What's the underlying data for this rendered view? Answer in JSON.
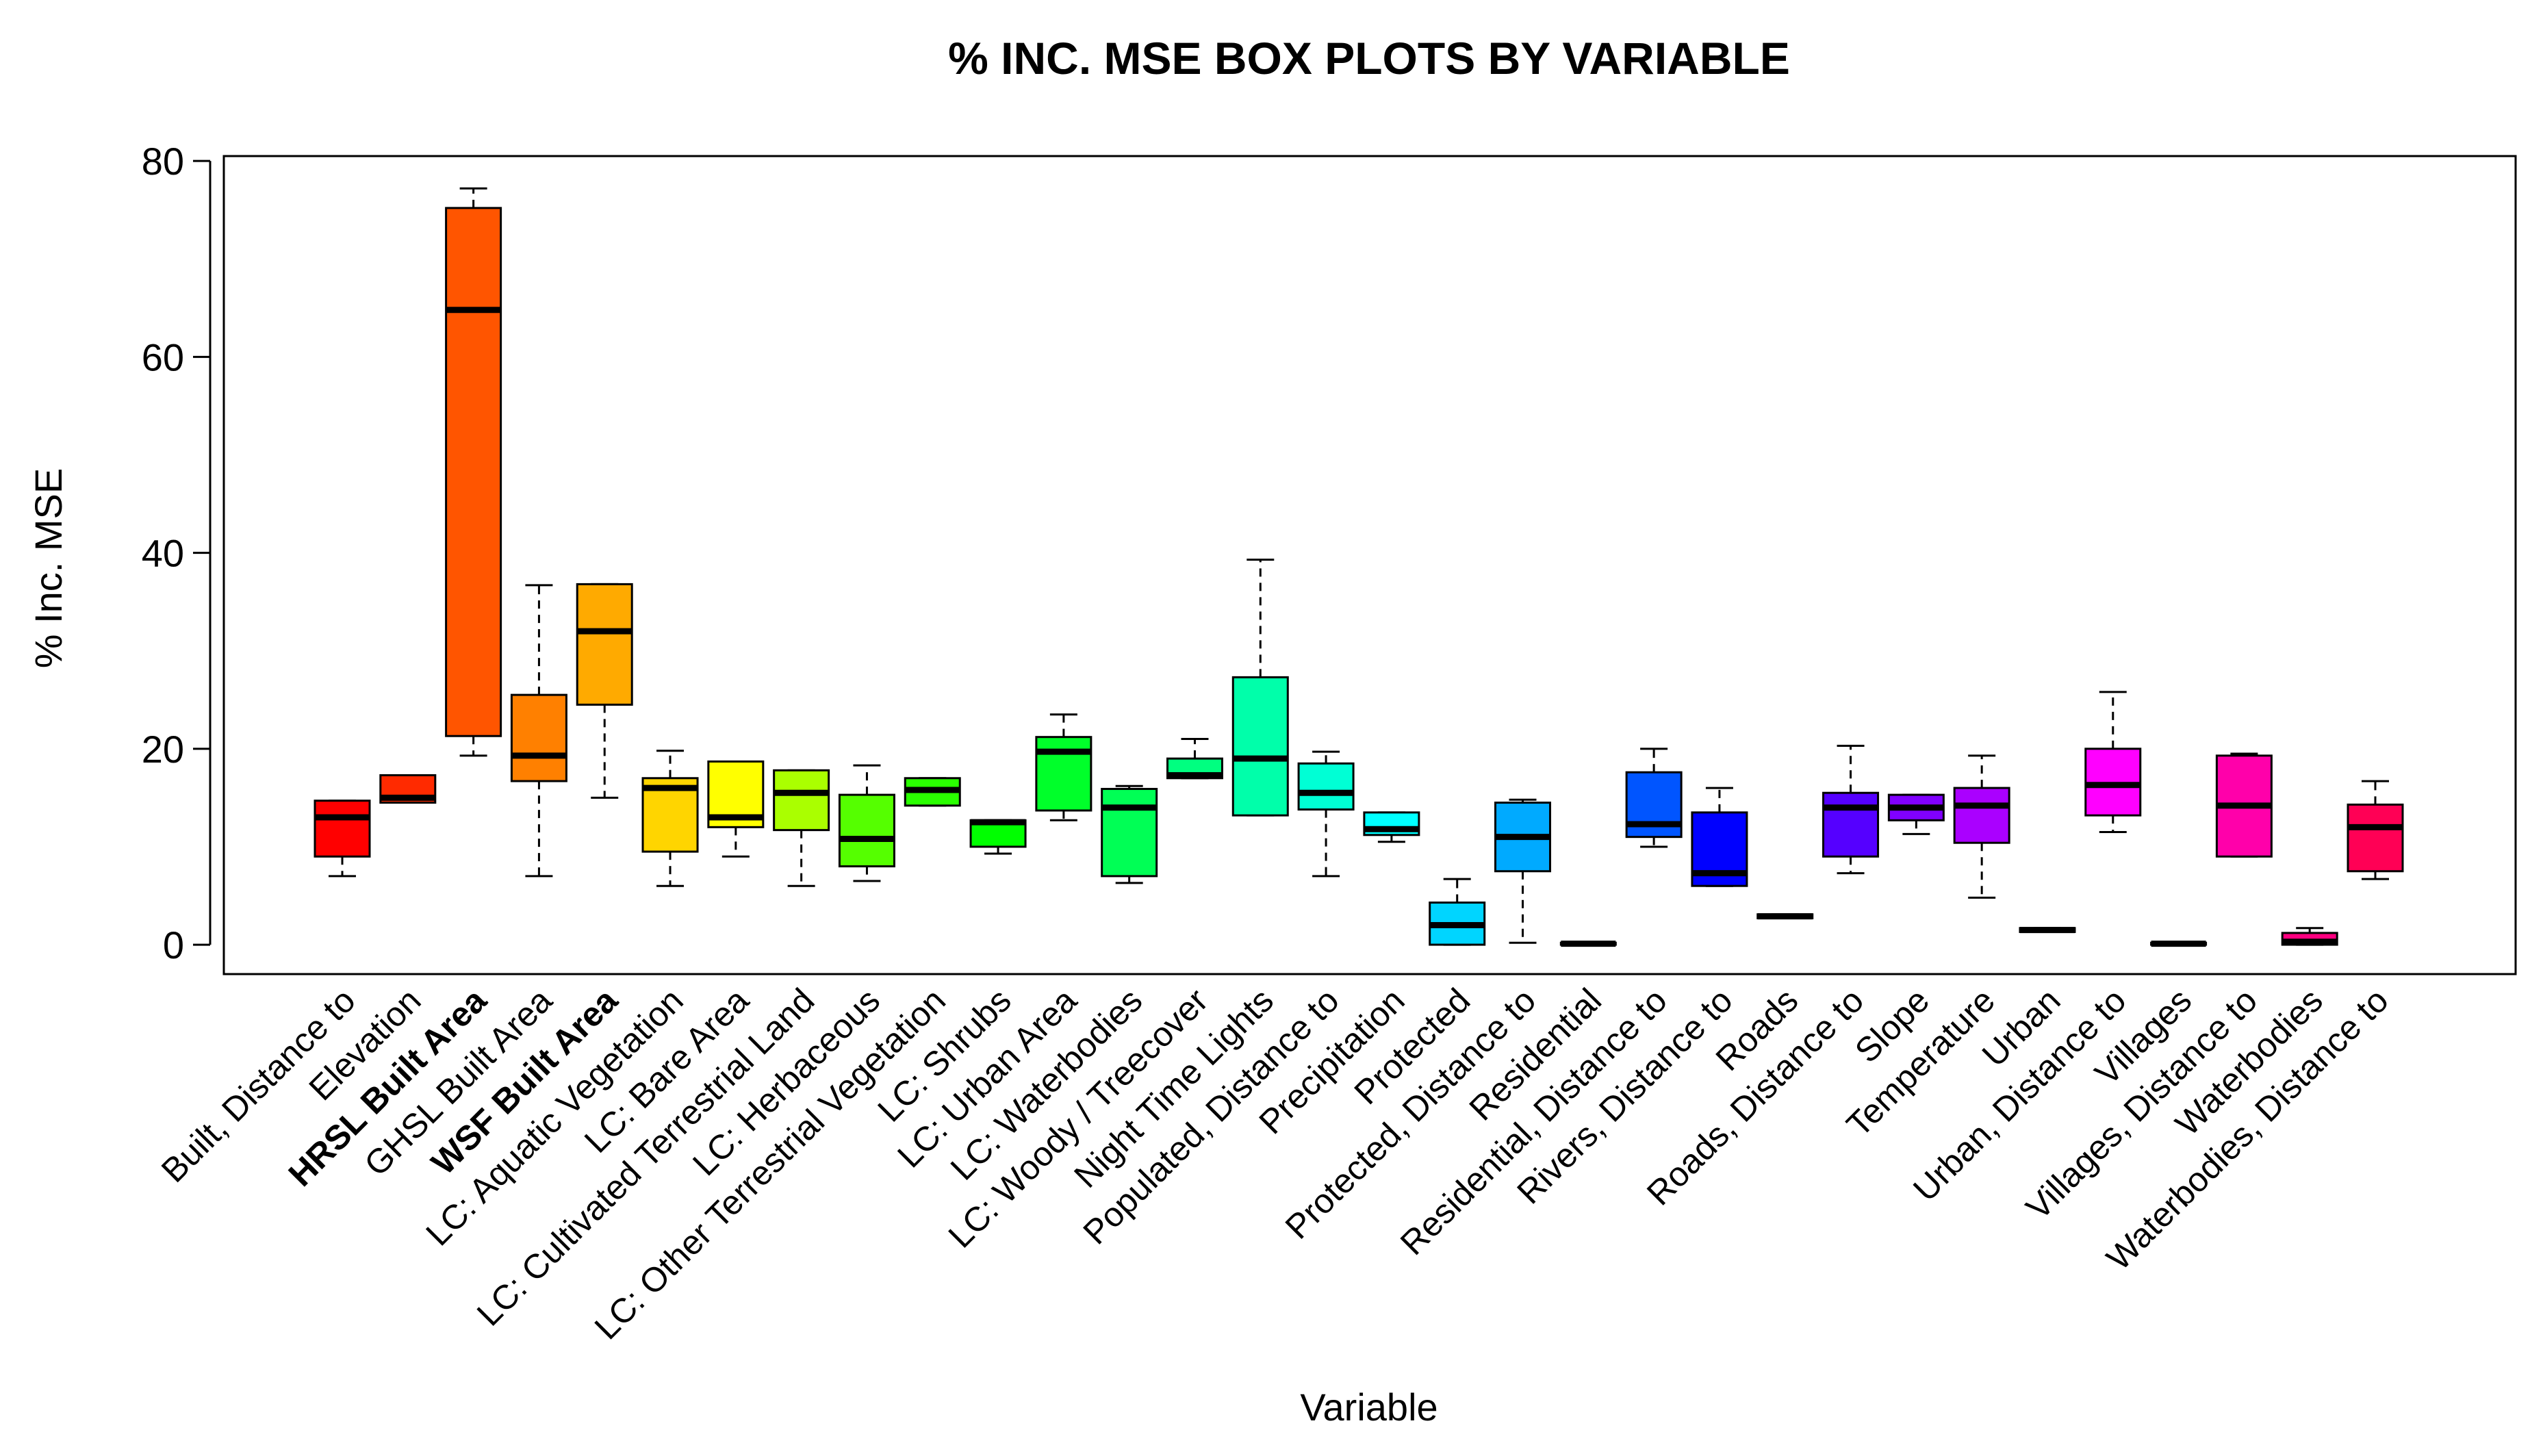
{
  "chart_data": {
    "type": "box",
    "title": "% INC. MSE BOX PLOTS BY VARIABLE",
    "xlabel": "Variable",
    "ylabel": "% Inc. MSE",
    "ylim": [
      -3,
      80.5
    ],
    "yticks": [
      0,
      20,
      40,
      60,
      80
    ],
    "yticks_labels": [
      "0",
      "20",
      "40",
      "60",
      "80"
    ],
    "categories": [
      {
        "label": "Built, Distance to",
        "bold": false,
        "color": "#FF0000",
        "stats": {
          "min": 7,
          "q1": 9,
          "median": 13,
          "q3": 14.7,
          "max": 14.7
        }
      },
      {
        "label": "Elevation",
        "bold": false,
        "color": "#FF2A00",
        "stats": {
          "min": 14.5,
          "q1": 14.5,
          "median": 15,
          "q3": 17.3,
          "max": 17.3
        }
      },
      {
        "label": "HRSL Built Area",
        "bold": true,
        "color": "#FF5500",
        "stats": {
          "min": 19.3,
          "q1": 21.3,
          "median": 64.8,
          "q3": 75.2,
          "max": 77.2
        }
      },
      {
        "label": "GHSL Built Area",
        "bold": false,
        "color": "#FF8000",
        "stats": {
          "min": 7,
          "q1": 16.7,
          "median": 19.3,
          "q3": 25.5,
          "max": 36.7
        }
      },
      {
        "label": "WSF  Built Area",
        "bold": true,
        "color": "#FFAA00",
        "stats": {
          "min": 15,
          "q1": 24.5,
          "median": 32,
          "q3": 36.8,
          "max": 36.8
        }
      },
      {
        "label": "LC: Aquatic Vegetation",
        "bold": false,
        "color": "#FFD500",
        "stats": {
          "min": 6,
          "q1": 9.5,
          "median": 16,
          "q3": 17,
          "max": 19.8
        }
      },
      {
        "label": "LC: Bare Area",
        "bold": false,
        "color": "#FFFF00",
        "stats": {
          "min": 9,
          "q1": 12,
          "median": 13,
          "q3": 18.7,
          "max": 18.7
        }
      },
      {
        "label": "LC: Cultivated Terrestrial Land",
        "bold": false,
        "color": "#AAFF00",
        "stats": {
          "min": 6,
          "q1": 11.7,
          "median": 15.5,
          "q3": 17.8,
          "max": 17.8
        }
      },
      {
        "label": "LC: Herbaceous",
        "bold": false,
        "color": "#55FF00",
        "stats": {
          "min": 6.5,
          "q1": 8,
          "median": 10.8,
          "q3": 15.3,
          "max": 18.3
        }
      },
      {
        "label": "LC: Other Terrestrial Vegetation",
        "bold": false,
        "color": "#2AFF00",
        "stats": {
          "min": 14.2,
          "q1": 14.2,
          "median": 15.8,
          "q3": 17,
          "max": 17
        }
      },
      {
        "label": "LC: Shrubs",
        "bold": false,
        "color": "#00FF00",
        "stats": {
          "min": 9.3,
          "q1": 10,
          "median": 12.5,
          "q3": 12.7,
          "max": 12.7
        }
      },
      {
        "label": "LC: Urban Area",
        "bold": false,
        "color": "#00FF2A",
        "stats": {
          "min": 12.7,
          "q1": 13.7,
          "median": 19.7,
          "q3": 21.2,
          "max": 23.5
        }
      },
      {
        "label": "LC: Waterbodies",
        "bold": false,
        "color": "#00FF55",
        "stats": {
          "min": 6.3,
          "q1": 7,
          "median": 14,
          "q3": 15.9,
          "max": 16.2
        }
      },
      {
        "label": "LC: Woody / Treecover",
        "bold": false,
        "color": "#00FF80",
        "stats": {
          "min": 17,
          "q1": 17,
          "median": 17.3,
          "q3": 19,
          "max": 21
        }
      },
      {
        "label": "Night Time Lights",
        "bold": false,
        "color": "#00FFAA",
        "stats": {
          "min": 13.2,
          "q1": 13.2,
          "median": 19,
          "q3": 27.3,
          "max": 39.3
        }
      },
      {
        "label": "Populated, Distance to",
        "bold": false,
        "color": "#00FFD5",
        "stats": {
          "min": 7,
          "q1": 13.8,
          "median": 15.5,
          "q3": 18.5,
          "max": 19.7
        }
      },
      {
        "label": "Precipitation",
        "bold": false,
        "color": "#00FFFF",
        "stats": {
          "min": 10.5,
          "q1": 11.2,
          "median": 11.8,
          "q3": 13.5,
          "max": 13.5
        }
      },
      {
        "label": "Protected",
        "bold": false,
        "color": "#00D5FF",
        "stats": {
          "min": 0,
          "q1": 0,
          "median": 2,
          "q3": 4.3,
          "max": 6.7
        }
      },
      {
        "label": "Protected, Distance to",
        "bold": false,
        "color": "#00AAFF",
        "stats": {
          "min": 0.2,
          "q1": 7.5,
          "median": 11,
          "q3": 14.5,
          "max": 14.8
        }
      },
      {
        "label": "Residential",
        "bold": false,
        "color": "#0080FF",
        "stats": {
          "min": 0,
          "q1": 0,
          "median": 0.1,
          "q3": 0.2,
          "max": 0.2
        }
      },
      {
        "label": "Residential, Distance to",
        "bold": false,
        "color": "#0055FF",
        "stats": {
          "min": 10,
          "q1": 11,
          "median": 12.3,
          "q3": 17.6,
          "max": 20
        }
      },
      {
        "label": "Rivers, Distance to",
        "bold": false,
        "color": "#0000FF",
        "stats": {
          "min": 6,
          "q1": 6,
          "median": 7.3,
          "q3": 13.5,
          "max": 16
        }
      },
      {
        "label": "Roads",
        "bold": false,
        "color": "#2A00FF",
        "stats": {
          "min": 2.7,
          "q1": 2.7,
          "median": 2.9,
          "q3": 3.1,
          "max": 3.1
        }
      },
      {
        "label": "Roads, Distance to",
        "bold": false,
        "color": "#5500FF",
        "stats": {
          "min": 7.3,
          "q1": 9,
          "median": 14,
          "q3": 15.5,
          "max": 20.3
        }
      },
      {
        "label": "Slope",
        "bold": false,
        "color": "#8000FF",
        "stats": {
          "min": 11.3,
          "q1": 12.7,
          "median": 14,
          "q3": 15.3,
          "max": 15.3
        }
      },
      {
        "label": "Temperature",
        "bold": false,
        "color": "#AA00FF",
        "stats": {
          "min": 4.8,
          "q1": 10.4,
          "median": 14.2,
          "q3": 16,
          "max": 19.3
        }
      },
      {
        "label": "Urban",
        "bold": false,
        "color": "#D500FF",
        "stats": {
          "min": 1.3,
          "q1": 1.3,
          "median": 1.5,
          "q3": 1.7,
          "max": 1.7
        }
      },
      {
        "label": "Urban, Distance to",
        "bold": false,
        "color": "#FF00FF",
        "stats": {
          "min": 11.5,
          "q1": 13.2,
          "median": 16.3,
          "q3": 20,
          "max": 25.8
        }
      },
      {
        "label": "Villages",
        "bold": false,
        "color": "#FF00D5",
        "stats": {
          "min": 0,
          "q1": 0,
          "median": 0.1,
          "q3": 0.2,
          "max": 0.2
        }
      },
      {
        "label": "Villages, Distance to",
        "bold": false,
        "color": "#FF00AA",
        "stats": {
          "min": 9,
          "q1": 9,
          "median": 14.2,
          "q3": 19.3,
          "max": 19.5
        }
      },
      {
        "label": "Waterbodies",
        "bold": false,
        "color": "#FF0080",
        "stats": {
          "min": 0,
          "q1": 0,
          "median": 0.3,
          "q3": 1.2,
          "max": 1.7
        }
      },
      {
        "label": "Waterbodies, Distance to",
        "bold": false,
        "color": "#FF0055",
        "stats": {
          "min": 6.7,
          "q1": 7.5,
          "median": 12,
          "q3": 14.3,
          "max": 16.7
        }
      }
    ]
  }
}
